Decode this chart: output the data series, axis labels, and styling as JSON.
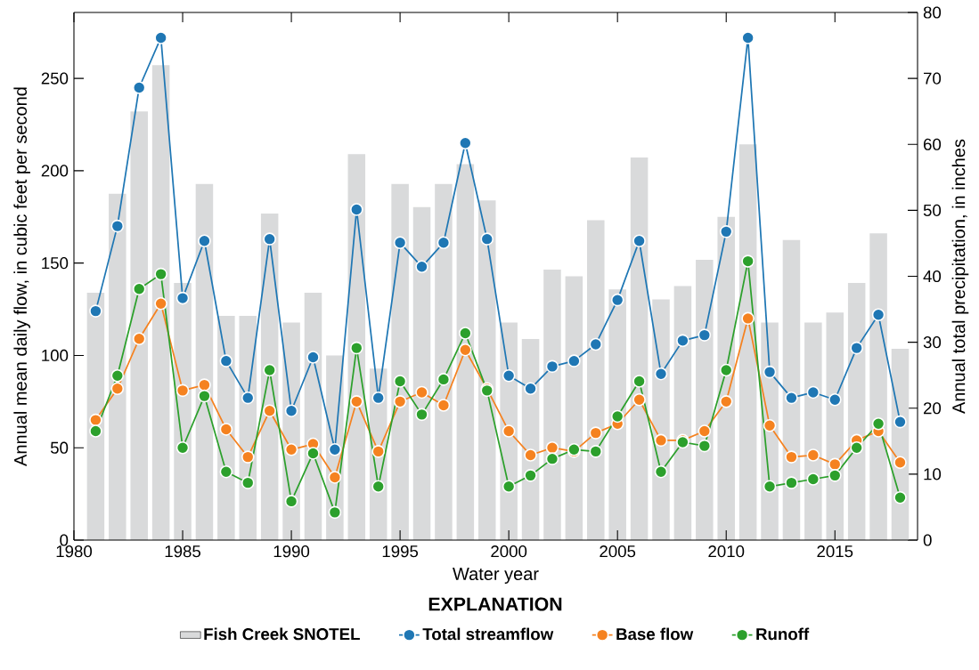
{
  "chart_data": {
    "type": "line",
    "xlabel": "Water year",
    "ylabel": "Annual mean daily flow, in cubic feet per second",
    "y2label": "Annual total precipitation, in inches",
    "legend_title": "EXPLANATION",
    "legend": "bottom",
    "marker": "circle",
    "line_style": "solid",
    "x": [
      1981,
      1982,
      1983,
      1984,
      1985,
      1986,
      1987,
      1988,
      1989,
      1990,
      1991,
      1992,
      1993,
      1994,
      1995,
      1996,
      1997,
      1998,
      1999,
      2000,
      2001,
      2002,
      2003,
      2004,
      2005,
      2006,
      2007,
      2008,
      2009,
      2010,
      2011,
      2012,
      2013,
      2014,
      2015,
      2016,
      2017,
      2018
    ],
    "xlim": [
      1980,
      2018.8
    ],
    "xticks": [
      1980,
      1985,
      1990,
      1995,
      2000,
      2005,
      2010,
      2015
    ],
    "ylim": [
      0,
      285.7
    ],
    "yticks": [
      0,
      50,
      100,
      150,
      200,
      250
    ],
    "y2lim": [
      0,
      80
    ],
    "y2ticks": [
      0,
      10,
      20,
      30,
      40,
      50,
      60,
      70,
      80
    ],
    "series": [
      {
        "name": "Fish Creek SNOTEL",
        "type": "bar",
        "axis": "y2",
        "color": "#d9dadb",
        "values": [
          37.5,
          52.5,
          65,
          72,
          39,
          54,
          34,
          34,
          49.5,
          33,
          37.5,
          28,
          58.5,
          26,
          54,
          50.5,
          54,
          57,
          51.5,
          33,
          30.5,
          41,
          40,
          48.5,
          38,
          58,
          36.5,
          38.5,
          42.5,
          49,
          60,
          33,
          45.5,
          33,
          34.5,
          39,
          46.5,
          29
        ]
      },
      {
        "name": "Total streamflow",
        "color": "#1f77b4",
        "values": [
          124,
          170,
          245,
          272,
          131,
          162,
          97,
          77,
          163,
          70,
          99,
          49,
          179,
          77,
          161,
          148,
          161,
          215,
          163,
          89,
          82,
          94,
          97,
          106,
          130,
          162,
          90,
          108,
          111,
          167,
          272,
          91,
          77,
          80,
          76,
          104,
          122,
          64
        ]
      },
      {
        "name": "Base flow",
        "color": "#f58220",
        "values": [
          65,
          82,
          109,
          128,
          81,
          84,
          60,
          45,
          70,
          49,
          52,
          34,
          75,
          48,
          75,
          80,
          73,
          103,
          82,
          59,
          46,
          50,
          48,
          58,
          63,
          76,
          54,
          54,
          59,
          75,
          120,
          62,
          45,
          46,
          41,
          54,
          59,
          42
        ]
      },
      {
        "name": "Runoff",
        "color": "#2ca02c",
        "values": [
          59,
          89,
          136,
          144,
          50,
          78,
          37,
          31,
          92,
          21,
          47,
          15,
          104,
          29,
          86,
          68,
          87,
          112,
          81,
          29,
          35,
          44,
          49,
          48,
          67,
          86,
          37,
          53,
          51,
          92,
          151,
          29,
          31,
          33,
          35,
          50,
          63,
          23
        ]
      }
    ]
  }
}
